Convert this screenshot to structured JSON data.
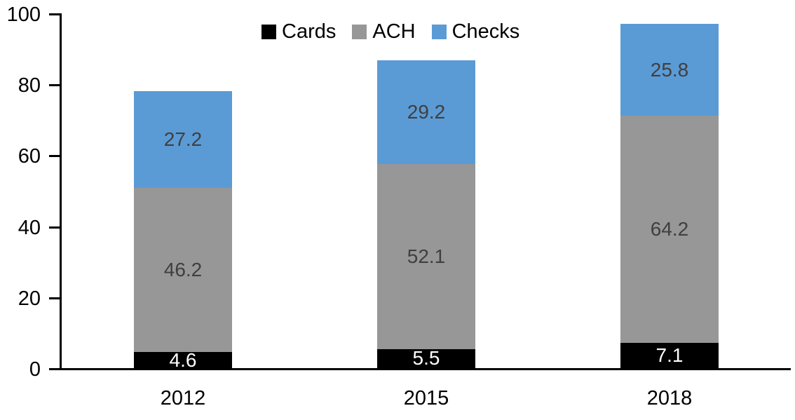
{
  "chart_data": {
    "type": "bar",
    "stacked": true,
    "title": "",
    "categories": [
      "2012",
      "2015",
      "2018"
    ],
    "series": [
      {
        "name": "Cards",
        "color": "#000000",
        "label_color": "#ffffff",
        "values": [
          4.6,
          5.5,
          7.1
        ]
      },
      {
        "name": "ACH",
        "color": "#979797",
        "label_color": "#3f3f3f",
        "values": [
          46.2,
          52.1,
          64.2
        ]
      },
      {
        "name": "Checks",
        "color": "#5b9bd5",
        "label_color": "#3f3f3f",
        "values": [
          27.2,
          29.2,
          25.8
        ]
      }
    ],
    "ylim": [
      0,
      100
    ],
    "yticks": [
      0,
      20,
      40,
      60,
      80,
      100
    ],
    "xlabel": "",
    "ylabel": "",
    "grid": false,
    "legend_position": "top-center",
    "axis_color": "#000000",
    "background_color": "#ffffff",
    "value_label_decimals": 1
  }
}
